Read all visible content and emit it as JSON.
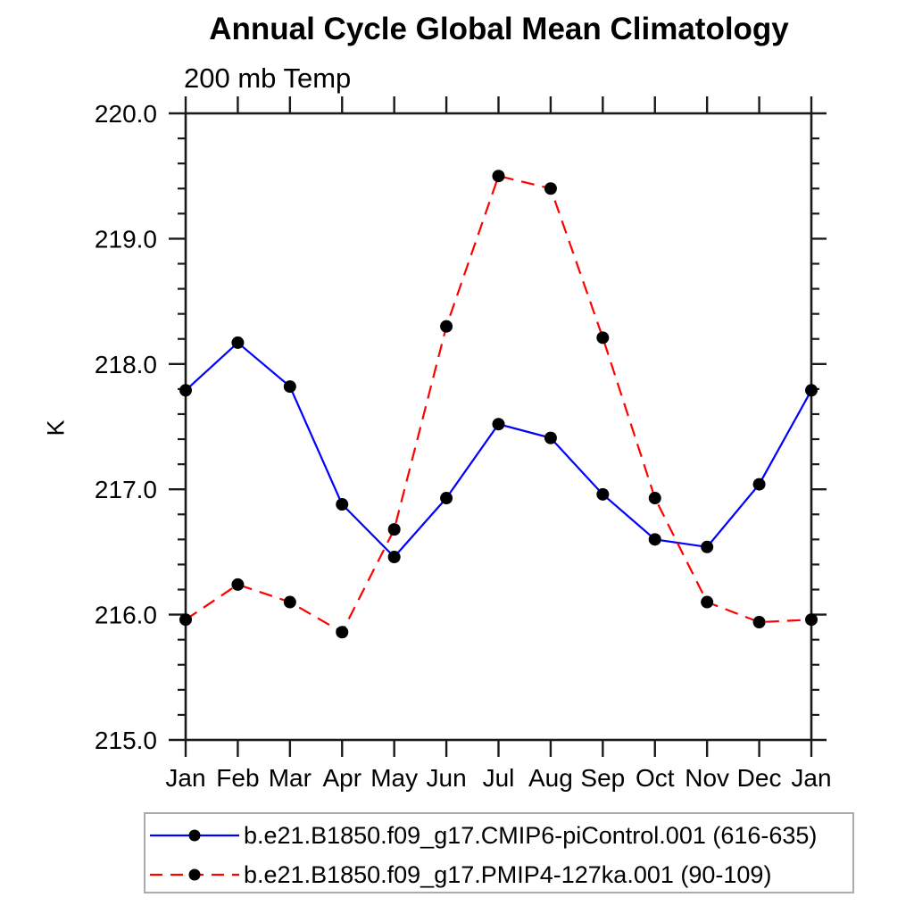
{
  "title": "Annual Cycle Global Mean Climatology",
  "subtitle": "200 mb Temp",
  "ylabel": "K",
  "chart_data": {
    "type": "line",
    "categories": [
      "Jan",
      "Feb",
      "Mar",
      "Apr",
      "May",
      "Jun",
      "Jul",
      "Aug",
      "Sep",
      "Oct",
      "Nov",
      "Dec",
      "Jan"
    ],
    "series": [
      {
        "name": "b.e21.B1850.f09_g17.CMIP6-piControl.001 (616-635)",
        "color": "#0000ff",
        "line_style": "solid",
        "values": [
          217.79,
          218.17,
          217.82,
          216.88,
          216.46,
          216.93,
          217.52,
          217.41,
          216.96,
          216.6,
          216.54,
          217.04,
          217.79
        ]
      },
      {
        "name": "b.e21.B1850.f09_g17.PMIP4-127ka.001 (90-109)",
        "color": "#ff0000",
        "line_style": "dashed",
        "values": [
          215.96,
          216.24,
          216.1,
          215.86,
          216.68,
          218.3,
          219.5,
          219.4,
          218.21,
          216.93,
          216.1,
          215.94,
          215.96
        ]
      }
    ],
    "ylim": [
      215.0,
      220.0
    ],
    "y_major_step": 1.0,
    "y_minor_step": 0.2,
    "y_tick_labels": [
      "215.0",
      "216.0",
      "217.0",
      "218.0",
      "219.0",
      "220.0"
    ],
    "marker": "filled-circle",
    "marker_color": "#000000",
    "grid": false,
    "legend_position": "bottom-left"
  }
}
